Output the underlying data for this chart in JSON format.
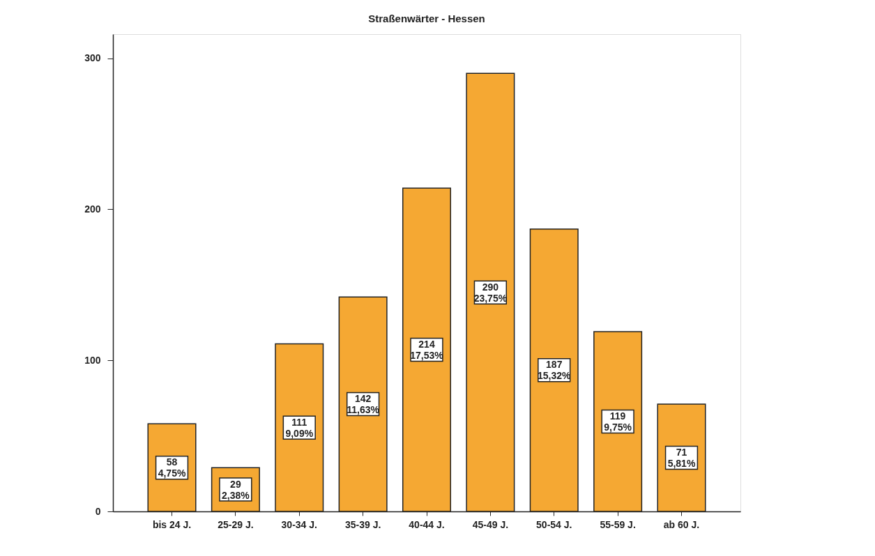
{
  "chart_data": {
    "type": "bar",
    "title": "Straßenwärter - Hessen",
    "categories": [
      "bis 24 J.",
      "25-29 J.",
      "30-34 J.",
      "35-39 J.",
      "40-44 J.",
      "45-49 J.",
      "50-54 J.",
      "55-59 J.",
      "ab 60 J."
    ],
    "values": [
      58,
      29,
      111,
      142,
      214,
      290,
      187,
      119,
      71
    ],
    "value_labels": [
      "58\n4,75%",
      "29\n2,38%",
      "111\n9,09%",
      "142\n11,63%",
      "214\n17,53%",
      "290\n23,75%",
      "187\n15,32%",
      "119\n9,75%",
      "71\n5,81%"
    ],
    "color": "#f5a833",
    "ylim": [
      0,
      316
    ],
    "yticks": [
      0,
      100,
      200,
      300
    ],
    "grid": false
  }
}
